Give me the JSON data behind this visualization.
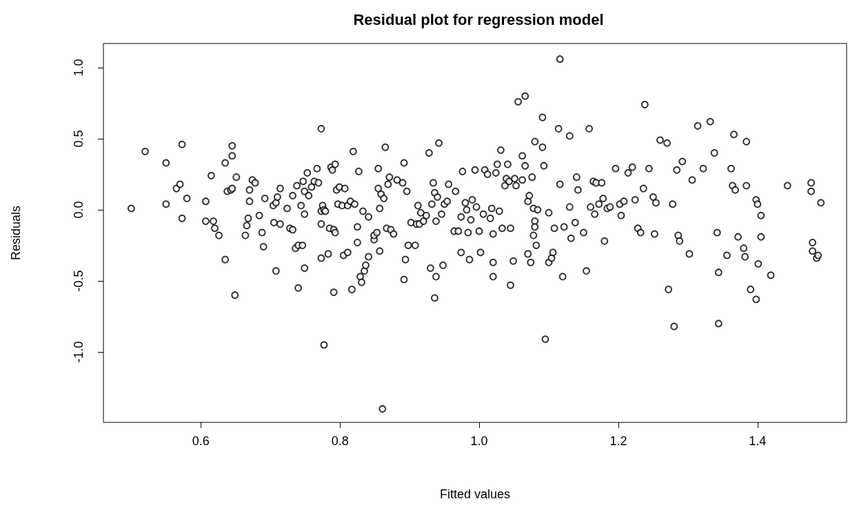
{
  "chart_data": {
    "type": "scatter",
    "title": "Residual plot for regression model",
    "xlabel": "Fitted values",
    "ylabel": "Residuals",
    "xlim": [
      0.46,
      1.528
    ],
    "ylim": [
      -1.495,
      1.17
    ],
    "xticks": [
      0.6,
      0.8,
      {
        "value": 1,
        "label": "1.0"
      },
      1.2,
      1.4
    ],
    "yticks": [
      {
        "value": -1,
        "label": "-1.0"
      },
      -0.5,
      {
        "value": 0,
        "label": "0.0"
      },
      0.5,
      {
        "value": 1,
        "label": "1.0"
      }
    ],
    "grid": false,
    "marker": "circle",
    "series": [
      {
        "color": "#000000",
        "x": [
          0.5,
          0.52,
          0.55,
          0.55,
          0.565,
          0.57,
          0.573,
          0.573,
          0.58,
          0.607,
          0.607,
          0.615,
          0.618,
          0.62,
          0.626,
          0.635,
          0.635,
          0.638,
          0.643,
          0.645,
          0.645,
          0.645,
          0.651,
          0.649,
          0.664,
          0.666,
          0.668,
          0.67,
          0.67,
          0.674,
          0.678,
          0.684,
          0.688,
          0.692,
          0.69,
          0.704,
          0.705,
          0.708,
          0.708,
          0.71,
          0.714,
          0.714,
          0.724,
          0.728,
          0.732,
          0.732,
          0.736,
          0.738,
          0.74,
          0.74,
          0.744,
          0.746,
          0.747,
          0.749,
          0.749,
          0.749,
          0.753,
          0.755,
          0.759,
          0.763,
          0.767,
          0.769,
          0.773,
          0.773,
          0.773,
          0.773,
          0.775,
          0.777,
          0.779,
          0.777,
          0.783,
          0.785,
          0.787,
          0.789,
          0.791,
          0.791,
          0.793,
          0.793,
          0.795,
          0.797,
          0.799,
          0.803,
          0.807,
          0.805,
          0.811,
          0.811,
          0.815,
          0.817,
          0.819,
          0.821,
          0.825,
          0.825,
          0.827,
          0.829,
          0.831,
          0.833,
          0.835,
          0.837,
          0.841,
          0.841,
          0.849,
          0.849,
          0.853,
          0.855,
          0.855,
          0.857,
          0.857,
          0.859,
          0.861,
          0.863,
          0.865,
          0.867,
          0.869,
          0.871,
          0.873,
          0.877,
          0.882,
          0.89,
          0.892,
          0.892,
          0.894,
          0.896,
          0.898,
          0.902,
          0.908,
          0.91,
          0.912,
          0.914,
          0.916,
          0.92,
          0.924,
          0.928,
          0.93,
          0.932,
          0.934,
          0.936,
          0.936,
          0.938,
          0.938,
          0.94,
          0.942,
          0.946,
          0.948,
          0.95,
          0.954,
          0.956,
          0.964,
          0.966,
          0.97,
          0.974,
          0.974,
          0.976,
          0.98,
          0.982,
          0.984,
          0.986,
          0.988,
          0.99,
          0.994,
          0.996,
          1.0,
          1.002,
          1.006,
          1.008,
          1.012,
          1.016,
          1.018,
          1.02,
          1.02,
          1.02,
          1.024,
          1.026,
          1.029,
          1.031,
          1.033,
          1.037,
          1.039,
          1.041,
          1.043,
          1.045,
          1.045,
          1.049,
          1.051,
          1.053,
          1.056,
          1.062,
          1.062,
          1.066,
          1.066,
          1.07,
          1.07,
          1.072,
          1.074,
          1.076,
          1.078,
          1.078,
          1.08,
          1.08,
          1.082,
          1.084,
          1.08,
          1.091,
          1.091,
          1.093,
          1.095,
          1.1,
          1.1,
          1.104,
          1.106,
          1.108,
          1.114,
          1.116,
          1.116,
          1.12,
          1.122,
          1.13,
          1.13,
          1.132,
          1.138,
          1.14,
          1.142,
          1.15,
          1.154,
          1.158,
          1.16,
          1.164,
          1.166,
          1.168,
          1.172,
          1.176,
          1.178,
          1.18,
          1.184,
          1.188,
          1.196,
          1.202,
          1.204,
          1.208,
          1.214,
          1.22,
          1.224,
          1.228,
          1.232,
          1.236,
          1.238,
          1.244,
          1.25,
          1.252,
          1.254,
          1.26,
          1.27,
          1.272,
          1.278,
          1.28,
          1.284,
          1.286,
          1.288,
          1.292,
          1.302,
          1.306,
          1.314,
          1.322,
          1.332,
          1.338,
          1.342,
          1.344,
          1.344,
          1.356,
          1.362,
          1.364,
          1.366,
          1.368,
          1.372,
          1.38,
          1.382,
          1.384,
          1.384,
          1.39,
          1.398,
          1.398,
          1.4,
          1.401,
          1.405,
          1.405,
          1.419,
          1.443,
          1.477,
          1.477,
          1.479,
          1.479,
          1.485,
          1.487,
          1.491
        ],
        "values": [
          0.01,
          0.41,
          0.33,
          0.04,
          0.15,
          0.18,
          0.46,
          -0.06,
          0.08,
          0.06,
          -0.08,
          0.24,
          -0.08,
          -0.13,
          -0.18,
          -0.35,
          0.33,
          0.13,
          0.14,
          0.45,
          0.38,
          0.15,
          0.23,
          -0.6,
          -0.18,
          -0.11,
          -0.06,
          0.06,
          0.14,
          0.21,
          0.19,
          -0.04,
          -0.16,
          0.08,
          -0.26,
          0.03,
          -0.09,
          0.05,
          -0.43,
          0.09,
          0.15,
          -0.1,
          0.01,
          -0.13,
          0.1,
          -0.14,
          -0.27,
          0.17,
          -0.25,
          -0.55,
          0.03,
          -0.25,
          0.2,
          0.13,
          -0.41,
          -0.03,
          0.26,
          0.1,
          0.16,
          0.2,
          0.29,
          0.19,
          -0.01,
          0.57,
          -0.34,
          -0.1,
          0.03,
          0.0,
          -0.01,
          -0.95,
          -0.31,
          -0.13,
          0.3,
          0.28,
          -0.14,
          -0.58,
          -0.16,
          0.32,
          0.14,
          0.04,
          0.16,
          0.03,
          0.15,
          -0.32,
          -0.3,
          0.03,
          0.06,
          -0.56,
          0.41,
          0.04,
          -0.12,
          -0.23,
          0.27,
          -0.47,
          -0.51,
          -0.01,
          -0.43,
          -0.39,
          -0.33,
          -0.05,
          -0.21,
          -0.18,
          -0.16,
          0.29,
          0.15,
          0.01,
          -0.29,
          0.11,
          -1.4,
          0.08,
          0.44,
          -0.13,
          0.18,
          0.23,
          -0.14,
          -0.17,
          0.21,
          0.19,
          0.33,
          -0.49,
          -0.35,
          0.13,
          -0.25,
          -0.09,
          -0.25,
          -0.1,
          0.03,
          -0.1,
          -0.02,
          -0.08,
          -0.04,
          0.4,
          -0.41,
          0.04,
          0.19,
          0.12,
          -0.62,
          -0.08,
          -0.47,
          0.09,
          0.47,
          -0.03,
          -0.39,
          0.04,
          0.06,
          0.18,
          -0.15,
          0.13,
          -0.15,
          -0.3,
          -0.05,
          0.27,
          0.05,
          0.0,
          -0.16,
          -0.35,
          -0.07,
          0.07,
          0.28,
          0.02,
          -0.15,
          -0.3,
          -0.03,
          0.28,
          0.25,
          -0.06,
          0.01,
          -0.47,
          -0.37,
          -0.17,
          0.26,
          0.32,
          -0.01,
          0.42,
          -0.13,
          0.17,
          0.22,
          0.32,
          0.2,
          -0.13,
          -0.53,
          -0.36,
          0.22,
          0.17,
          0.76,
          0.21,
          0.38,
          0.8,
          0.31,
          0.06,
          -0.31,
          0.1,
          -0.37,
          0.23,
          0.01,
          -0.18,
          -0.08,
          -0.12,
          -0.25,
          0.0,
          0.48,
          0.44,
          0.65,
          0.31,
          -0.91,
          -0.02,
          -0.37,
          -0.34,
          -0.3,
          -0.13,
          0.57,
          1.06,
          0.18,
          -0.47,
          -0.12,
          0.52,
          0.02,
          -0.2,
          -0.09,
          0.23,
          0.14,
          -0.16,
          -0.43,
          0.57,
          0.02,
          0.2,
          -0.03,
          0.19,
          0.04,
          0.19,
          0.08,
          -0.22,
          0.01,
          0.02,
          0.29,
          0.04,
          -0.04,
          0.06,
          0.26,
          0.3,
          0.07,
          -0.13,
          -0.16,
          0.15,
          0.74,
          0.29,
          0.09,
          -0.17,
          0.05,
          0.49,
          0.47,
          -0.56,
          0.04,
          -0.82,
          0.28,
          -0.18,
          -0.22,
          0.34,
          -0.31,
          0.21,
          0.59,
          0.29,
          0.62,
          0.4,
          -0.16,
          -0.44,
          -0.8,
          -0.32,
          0.29,
          0.17,
          0.53,
          0.14,
          -0.19,
          -0.27,
          -0.33,
          0.17,
          0.48,
          -0.56,
          0.07,
          -0.63,
          0.04,
          -0.38,
          -0.19,
          -0.04,
          -0.46,
          0.17,
          0.19,
          0.13,
          -0.23,
          -0.29,
          -0.34,
          -0.32,
          0.05
        ]
      }
    ]
  }
}
